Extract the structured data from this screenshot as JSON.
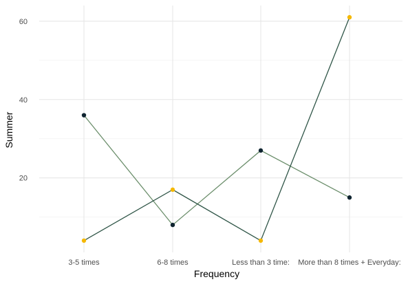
{
  "chart_data": {
    "type": "line",
    "title": "",
    "xlabel": "Frequency",
    "ylabel": "Summer",
    "categories": [
      "3-5 times",
      "6-8 times",
      "Less than 3 time:",
      "More than 8 times + Everyday:"
    ],
    "ylim": [
      1,
      64
    ],
    "yticks": [
      20,
      40,
      60
    ],
    "grid": true,
    "series": [
      {
        "values": [
          36,
          8,
          27,
          15
        ],
        "line_color": "#6b8e6b",
        "point_color": "#0f2430"
      },
      {
        "values": [
          4,
          17,
          4,
          61
        ],
        "line_color": "#2f5547",
        "point_color": "#f5b800"
      }
    ]
  }
}
